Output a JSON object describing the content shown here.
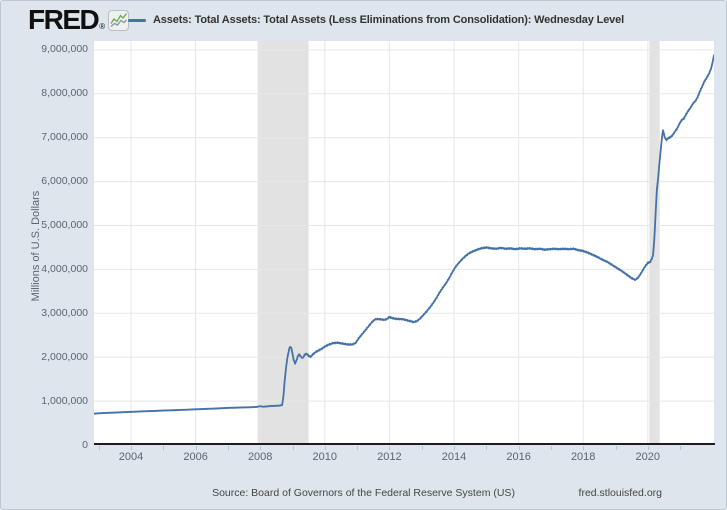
{
  "brand": {
    "logo_text": "FRED",
    "registered_mark": "®",
    "logo_icon": "fred-sparkline-icon"
  },
  "legend": {
    "series_label": "Assets: Total Assets: Total Assets (Less Eliminations from Consolidation): Wednesday Level",
    "series_color": "#4572a7"
  },
  "footer": {
    "source_text": "Source: Board of Governors of the Federal Reserve System (US)",
    "site_text": "fred.stlouisfed.org"
  },
  "colors": {
    "background": "#dee5ec",
    "plot_background": "#ffffff",
    "line": "#4572a7",
    "gridline": "#e7e7e7",
    "recession_band": "#e2e2e2",
    "axis_line": "#1c1c1c",
    "tick_text": "#5b6570",
    "logo_icon_green": "#69a74a",
    "logo_icon_slate": "#8096a8"
  },
  "chart_data": {
    "type": "line",
    "title": "Assets: Total Assets: Total Assets (Less Eliminations from Consolidation): Wednesday Level",
    "xlabel": "",
    "ylabel": "Millions of U.S. Dollars",
    "xlim": [
      2002.855,
      2022.05
    ],
    "ylim": [
      0,
      9200000
    ],
    "grid": true,
    "legend_position": "top",
    "line_color": "#4572a7",
    "x_ticks": [
      2004,
      2006,
      2008,
      2010,
      2012,
      2014,
      2016,
      2018,
      2020
    ],
    "y_ticks": [
      0,
      1000000,
      2000000,
      3000000,
      4000000,
      5000000,
      6000000,
      7000000,
      8000000,
      9000000
    ],
    "recession_bands": [
      [
        2007.92,
        2009.5
      ],
      [
        2020.05,
        2020.37
      ]
    ],
    "jitter": 12000,
    "series": [
      {
        "name": "Assets: Total Assets: Total Assets (Less Eliminations from Consolidation): Wednesday Level",
        "units": "Millions of U.S. Dollars",
        "points": [
          [
            2002.855,
            715000
          ],
          [
            2003.0,
            722000
          ],
          [
            2003.15,
            728000
          ],
          [
            2003.3,
            733000
          ],
          [
            2003.5,
            738000
          ],
          [
            2003.7,
            745000
          ],
          [
            2003.9,
            752000
          ],
          [
            2004.1,
            758000
          ],
          [
            2004.3,
            765000
          ],
          [
            2004.5,
            770000
          ],
          [
            2004.7,
            775000
          ],
          [
            2004.9,
            782000
          ],
          [
            2005.1,
            788000
          ],
          [
            2005.3,
            792000
          ],
          [
            2005.5,
            798000
          ],
          [
            2005.7,
            803000
          ],
          [
            2005.9,
            810000
          ],
          [
            2006.1,
            816000
          ],
          [
            2006.3,
            822000
          ],
          [
            2006.5,
            828000
          ],
          [
            2006.7,
            834000
          ],
          [
            2006.9,
            842000
          ],
          [
            2007.1,
            848000
          ],
          [
            2007.3,
            852000
          ],
          [
            2007.5,
            857000
          ],
          [
            2007.7,
            860000
          ],
          [
            2007.9,
            868000
          ],
          [
            2008.0,
            885000
          ],
          [
            2008.08,
            872000
          ],
          [
            2008.2,
            878000
          ],
          [
            2008.32,
            888000
          ],
          [
            2008.45,
            892000
          ],
          [
            2008.6,
            898000
          ],
          [
            2008.68,
            910000
          ],
          [
            2008.72,
            1120000
          ],
          [
            2008.76,
            1480000
          ],
          [
            2008.8,
            1760000
          ],
          [
            2008.84,
            1980000
          ],
          [
            2008.88,
            2130000
          ],
          [
            2008.92,
            2240000
          ],
          [
            2008.96,
            2220000
          ],
          [
            2009.0,
            2080000
          ],
          [
            2009.04,
            1930000
          ],
          [
            2009.08,
            1860000
          ],
          [
            2009.12,
            1920000
          ],
          [
            2009.16,
            2010000
          ],
          [
            2009.2,
            2070000
          ],
          [
            2009.26,
            2010000
          ],
          [
            2009.32,
            1980000
          ],
          [
            2009.38,
            2060000
          ],
          [
            2009.44,
            2080000
          ],
          [
            2009.5,
            2030000
          ],
          [
            2009.56,
            2010000
          ],
          [
            2009.64,
            2070000
          ],
          [
            2009.72,
            2120000
          ],
          [
            2009.8,
            2150000
          ],
          [
            2009.9,
            2190000
          ],
          [
            2010.0,
            2240000
          ],
          [
            2010.1,
            2280000
          ],
          [
            2010.25,
            2320000
          ],
          [
            2010.4,
            2330000
          ],
          [
            2010.55,
            2310000
          ],
          [
            2010.7,
            2290000
          ],
          [
            2010.85,
            2290000
          ],
          [
            2010.95,
            2320000
          ],
          [
            2011.05,
            2430000
          ],
          [
            2011.15,
            2520000
          ],
          [
            2011.25,
            2610000
          ],
          [
            2011.35,
            2700000
          ],
          [
            2011.45,
            2790000
          ],
          [
            2011.55,
            2860000
          ],
          [
            2011.65,
            2870000
          ],
          [
            2011.75,
            2860000
          ],
          [
            2011.85,
            2850000
          ],
          [
            2011.95,
            2880000
          ],
          [
            2012.0,
            2920000
          ],
          [
            2012.05,
            2900000
          ],
          [
            2012.15,
            2880000
          ],
          [
            2012.25,
            2870000
          ],
          [
            2012.35,
            2870000
          ],
          [
            2012.45,
            2860000
          ],
          [
            2012.55,
            2840000
          ],
          [
            2012.65,
            2820000
          ],
          [
            2012.75,
            2800000
          ],
          [
            2012.85,
            2820000
          ],
          [
            2012.95,
            2880000
          ],
          [
            2013.05,
            2960000
          ],
          [
            2013.15,
            3040000
          ],
          [
            2013.25,
            3130000
          ],
          [
            2013.35,
            3230000
          ],
          [
            2013.45,
            3340000
          ],
          [
            2013.55,
            3470000
          ],
          [
            2013.65,
            3580000
          ],
          [
            2013.75,
            3680000
          ],
          [
            2013.85,
            3800000
          ],
          [
            2013.95,
            3940000
          ],
          [
            2014.05,
            4060000
          ],
          [
            2014.15,
            4150000
          ],
          [
            2014.25,
            4230000
          ],
          [
            2014.35,
            4300000
          ],
          [
            2014.45,
            4360000
          ],
          [
            2014.55,
            4400000
          ],
          [
            2014.65,
            4430000
          ],
          [
            2014.75,
            4460000
          ],
          [
            2014.85,
            4480000
          ],
          [
            2015.0,
            4500000
          ],
          [
            2015.15,
            4480000
          ],
          [
            2015.3,
            4470000
          ],
          [
            2015.45,
            4490000
          ],
          [
            2015.6,
            4470000
          ],
          [
            2015.75,
            4480000
          ],
          [
            2015.9,
            4460000
          ],
          [
            2016.05,
            4480000
          ],
          [
            2016.2,
            4470000
          ],
          [
            2016.35,
            4480000
          ],
          [
            2016.5,
            4460000
          ],
          [
            2016.65,
            4470000
          ],
          [
            2016.8,
            4450000
          ],
          [
            2016.95,
            4460000
          ],
          [
            2017.1,
            4470000
          ],
          [
            2017.25,
            4460000
          ],
          [
            2017.4,
            4470000
          ],
          [
            2017.55,
            4460000
          ],
          [
            2017.7,
            4470000
          ],
          [
            2017.85,
            4440000
          ],
          [
            2018.0,
            4420000
          ],
          [
            2018.15,
            4380000
          ],
          [
            2018.3,
            4330000
          ],
          [
            2018.45,
            4280000
          ],
          [
            2018.6,
            4220000
          ],
          [
            2018.75,
            4170000
          ],
          [
            2018.9,
            4100000
          ],
          [
            2019.05,
            4030000
          ],
          [
            2019.2,
            3960000
          ],
          [
            2019.35,
            3880000
          ],
          [
            2019.5,
            3800000
          ],
          [
            2019.62,
            3760000
          ],
          [
            2019.72,
            3830000
          ],
          [
            2019.82,
            3950000
          ],
          [
            2019.92,
            4070000
          ],
          [
            2020.0,
            4150000
          ],
          [
            2020.08,
            4170000
          ],
          [
            2020.16,
            4310000
          ],
          [
            2020.2,
            4670000
          ],
          [
            2020.24,
            5250000
          ],
          [
            2020.28,
            5810000
          ],
          [
            2020.32,
            6080000
          ],
          [
            2020.36,
            6420000
          ],
          [
            2020.4,
            6720000
          ],
          [
            2020.44,
            7010000
          ],
          [
            2020.47,
            7170000
          ],
          [
            2020.5,
            7080000
          ],
          [
            2020.54,
            6980000
          ],
          [
            2020.58,
            6950000
          ],
          [
            2020.63,
            6990000
          ],
          [
            2020.7,
            7010000
          ],
          [
            2020.77,
            7060000
          ],
          [
            2020.84,
            7140000
          ],
          [
            2020.91,
            7210000
          ],
          [
            2020.98,
            7320000
          ],
          [
            2021.05,
            7400000
          ],
          [
            2021.12,
            7440000
          ],
          [
            2021.19,
            7540000
          ],
          [
            2021.26,
            7620000
          ],
          [
            2021.33,
            7690000
          ],
          [
            2021.4,
            7780000
          ],
          [
            2021.47,
            7830000
          ],
          [
            2021.54,
            7920000
          ],
          [
            2021.61,
            8050000
          ],
          [
            2021.68,
            8160000
          ],
          [
            2021.75,
            8280000
          ],
          [
            2021.82,
            8360000
          ],
          [
            2021.89,
            8450000
          ],
          [
            2021.96,
            8580000
          ],
          [
            2022.0,
            8700000
          ],
          [
            2022.05,
            8880000
          ]
        ]
      }
    ]
  }
}
